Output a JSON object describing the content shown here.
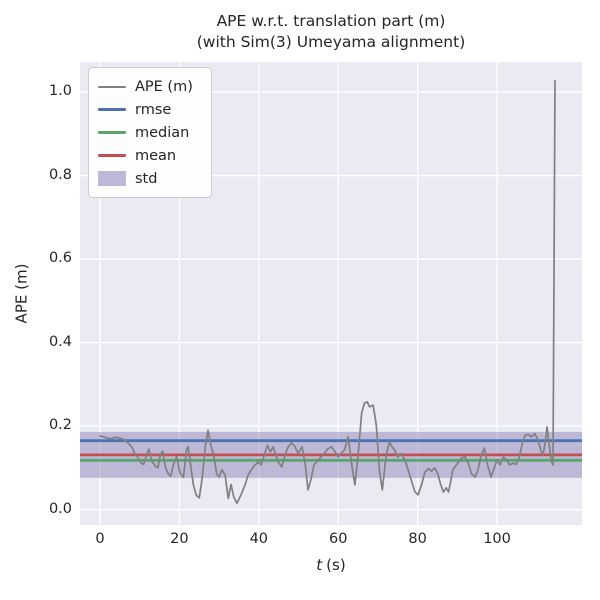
{
  "title": "APE w.r.t. translation part (m)",
  "subtitle": "(with Sim(3) Umeyama alignment)",
  "xlabel": "t (s)",
  "xlabel_var": "t",
  "xlabel_unit": "(s)",
  "ylabel": "APE (m)",
  "colors": {
    "ape": "#808080",
    "rmse": "#4C72B0",
    "median": "#55A868",
    "mean": "#C44E52",
    "std": "#8172B2",
    "std_fill_opacity": 0.42,
    "axes_bg": "#EAEAF2",
    "grid": "#FFFFFF",
    "text": "#262626"
  },
  "legend": [
    {
      "key": "ape",
      "label": "APE (m)",
      "type": "line"
    },
    {
      "key": "rmse",
      "label": "rmse",
      "type": "line"
    },
    {
      "key": "median",
      "label": "median",
      "type": "line"
    },
    {
      "key": "mean",
      "label": "mean",
      "type": "line"
    },
    {
      "key": "std",
      "label": "std",
      "type": "patch"
    }
  ],
  "chart_data": {
    "type": "line",
    "title": "APE w.r.t. translation part (m)\n(with Sim(3) Umeyama alignment)",
    "xlabel": "t (s)",
    "ylabel": "APE (m)",
    "xlim": [
      -5.04,
      121.4
    ],
    "ylim": [
      -0.037,
      1.072
    ],
    "xticks": [
      0,
      20,
      40,
      60,
      80,
      100
    ],
    "yticks": [
      0.0,
      0.2,
      0.4,
      0.6,
      0.8,
      1.0
    ],
    "grid": true,
    "legend_position": "upper left",
    "stats": {
      "rmse": 0.165,
      "mean": 0.131,
      "median": 0.118,
      "std": 0.055
    },
    "std_band": [
      0.076,
      0.186
    ],
    "series": [
      {
        "name": "APE (m)",
        "points": [
          [
            0,
            0.176
          ],
          [
            1,
            0.174
          ],
          [
            2,
            0.171
          ],
          [
            3,
            0.17
          ],
          [
            4,
            0.173
          ],
          [
            5,
            0.171
          ],
          [
            6,
            0.168
          ],
          [
            7,
            0.16
          ],
          [
            8,
            0.15
          ],
          [
            8.6,
            0.137
          ],
          [
            9.5,
            0.125
          ],
          [
            10.3,
            0.112
          ],
          [
            11,
            0.108
          ],
          [
            11.7,
            0.13
          ],
          [
            12.3,
            0.145
          ],
          [
            13.1,
            0.115
          ],
          [
            14,
            0.103
          ],
          [
            14.6,
            0.1
          ],
          [
            15.2,
            0.132
          ],
          [
            15.8,
            0.14
          ],
          [
            16.5,
            0.1
          ],
          [
            17.3,
            0.084
          ],
          [
            17.8,
            0.08
          ],
          [
            18.5,
            0.108
          ],
          [
            19.3,
            0.127
          ],
          [
            20.1,
            0.089
          ],
          [
            21,
            0.077
          ],
          [
            21.8,
            0.144
          ],
          [
            22.2,
            0.151
          ],
          [
            22.8,
            0.108
          ],
          [
            23.5,
            0.06
          ],
          [
            24.2,
            0.035
          ],
          [
            25,
            0.028
          ],
          [
            25.8,
            0.08
          ],
          [
            26.5,
            0.15
          ],
          [
            27.2,
            0.19
          ],
          [
            27.9,
            0.155
          ],
          [
            28.6,
            0.131
          ],
          [
            29.4,
            0.085
          ],
          [
            30,
            0.078
          ],
          [
            30.7,
            0.095
          ],
          [
            31.5,
            0.083
          ],
          [
            32.3,
            0.027
          ],
          [
            33,
            0.06
          ],
          [
            33.7,
            0.03
          ],
          [
            34.5,
            0.015
          ],
          [
            35.5,
            0.035
          ],
          [
            36.5,
            0.058
          ],
          [
            37.3,
            0.083
          ],
          [
            38.6,
            0.102
          ],
          [
            39.8,
            0.114
          ],
          [
            40.6,
            0.107
          ],
          [
            41.5,
            0.135
          ],
          [
            42.2,
            0.154
          ],
          [
            42.9,
            0.138
          ],
          [
            43.6,
            0.15
          ],
          [
            44.9,
            0.114
          ],
          [
            45.8,
            0.102
          ],
          [
            46.6,
            0.131
          ],
          [
            47.4,
            0.15
          ],
          [
            48.2,
            0.16
          ],
          [
            49,
            0.152
          ],
          [
            49.9,
            0.135
          ],
          [
            50.9,
            0.15
          ],
          [
            51.7,
            0.107
          ],
          [
            52.4,
            0.047
          ],
          [
            53.2,
            0.075
          ],
          [
            53.9,
            0.107
          ],
          [
            55,
            0.119
          ],
          [
            56.2,
            0.131
          ],
          [
            57.3,
            0.145
          ],
          [
            58.3,
            0.15
          ],
          [
            59.2,
            0.138
          ],
          [
            60,
            0.126
          ],
          [
            60.8,
            0.135
          ],
          [
            61.6,
            0.143
          ],
          [
            62.5,
            0.174
          ],
          [
            63.3,
            0.114
          ],
          [
            64.2,
            0.059
          ],
          [
            65,
            0.13
          ],
          [
            65.9,
            0.231
          ],
          [
            66.6,
            0.255
          ],
          [
            67.3,
            0.258
          ],
          [
            67.9,
            0.246
          ],
          [
            68.8,
            0.25
          ],
          [
            69.6,
            0.202
          ],
          [
            70.4,
            0.091
          ],
          [
            71.1,
            0.047
          ],
          [
            72.1,
            0.131
          ],
          [
            72.9,
            0.162
          ],
          [
            73.7,
            0.148
          ],
          [
            74.2,
            0.143
          ],
          [
            75,
            0.126
          ],
          [
            75.8,
            0.134
          ],
          [
            76.8,
            0.119
          ],
          [
            77.6,
            0.095
          ],
          [
            78.5,
            0.067
          ],
          [
            79.3,
            0.043
          ],
          [
            80.1,
            0.035
          ],
          [
            81,
            0.06
          ],
          [
            81.8,
            0.089
          ],
          [
            82.7,
            0.098
          ],
          [
            83.5,
            0.092
          ],
          [
            84.3,
            0.1
          ],
          [
            85.1,
            0.085
          ],
          [
            85.8,
            0.06
          ],
          [
            86.5,
            0.042
          ],
          [
            87.2,
            0.052
          ],
          [
            87.8,
            0.042
          ],
          [
            88.9,
            0.096
          ],
          [
            90,
            0.11
          ],
          [
            91,
            0.123
          ],
          [
            91.9,
            0.127
          ],
          [
            92.8,
            0.11
          ],
          [
            93.6,
            0.085
          ],
          [
            94.5,
            0.078
          ],
          [
            95.2,
            0.095
          ],
          [
            96,
            0.13
          ],
          [
            96.8,
            0.147
          ],
          [
            97.6,
            0.107
          ],
          [
            98.5,
            0.078
          ],
          [
            99.3,
            0.1
          ],
          [
            100,
            0.119
          ],
          [
            100.8,
            0.107
          ],
          [
            101.6,
            0.126
          ],
          [
            102.4,
            0.119
          ],
          [
            103.2,
            0.107
          ],
          [
            104,
            0.111
          ],
          [
            104.8,
            0.108
          ],
          [
            105.6,
            0.125
          ],
          [
            106.4,
            0.16
          ],
          [
            107.1,
            0.178
          ],
          [
            107.9,
            0.18
          ],
          [
            108.7,
            0.174
          ],
          [
            109.5,
            0.182
          ],
          [
            110.3,
            0.167
          ],
          [
            111.1,
            0.14
          ],
          [
            111.6,
            0.131
          ],
          [
            112.2,
            0.165
          ],
          [
            112.6,
            0.198
          ],
          [
            113.2,
            0.15
          ],
          [
            113.7,
            0.115
          ],
          [
            114.1,
            0.107
          ],
          [
            114.6,
            1.027
          ]
        ]
      }
    ]
  }
}
